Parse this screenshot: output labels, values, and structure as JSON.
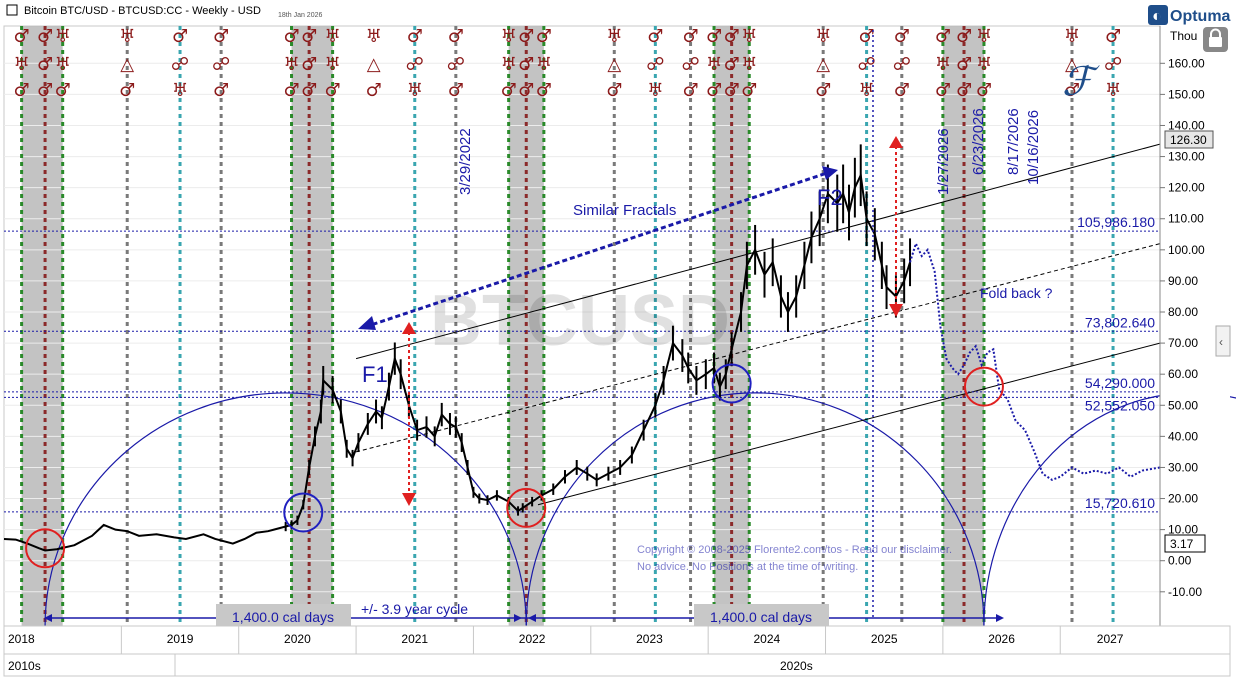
{
  "header": {
    "title": "Bitcoin BTC/USD - BTCUSD:CC - Weekly - USD",
    "date": "18th Jan 2026",
    "brand": "Optuma",
    "units": "Thou",
    "watermark": "BTCUSD"
  },
  "copyright": {
    "line1": "Copyright © 2008-2025 Florente2.com/tos - Read our disclaimer.",
    "line2": "No advice. No Positions at the time of writing."
  },
  "chart_data": {
    "type": "line",
    "yaxis": {
      "ticks": [
        -10,
        0,
        10,
        20,
        30,
        40,
        50,
        60,
        70,
        80,
        90,
        100,
        110,
        120,
        130,
        140,
        150,
        160
      ],
      "tick_labels": [
        "-10.00",
        "0.00",
        "10.00",
        "20.00",
        "30.00",
        "40.00",
        "50.00",
        "60.00",
        "70.00",
        "80.00",
        "90.00",
        "100.00",
        "110.00",
        "120.00",
        "130.00",
        "140.00",
        "150.00",
        "160.00"
      ],
      "ylim": [
        -21,
        172
      ]
    },
    "xaxis": {
      "years": [
        "2018",
        "2019",
        "2020",
        "2021",
        "2022",
        "2023",
        "2024",
        "2025",
        "2026",
        "2027"
      ],
      "decades": [
        "2010s",
        "2020s"
      ],
      "xlim": [
        2018.0,
        2027.85
      ]
    },
    "last_price_label": "126.30",
    "current_value_label": "3.17",
    "price_series": {
      "name": "BTCUSD",
      "points": [
        [
          2018.0,
          7.0
        ],
        [
          2018.1,
          6.8
        ],
        [
          2018.2,
          5.5
        ],
        [
          2018.3,
          4.0
        ],
        [
          2018.35,
          3.3
        ],
        [
          2018.45,
          3.7
        ],
        [
          2018.6,
          5.0
        ],
        [
          2018.75,
          8.0
        ],
        [
          2018.85,
          11.5
        ],
        [
          2018.95,
          10.0
        ],
        [
          2019.05,
          9.5
        ],
        [
          2019.15,
          8.0
        ],
        [
          2019.3,
          8.5
        ],
        [
          2019.45,
          7.5
        ],
        [
          2019.55,
          7.0
        ],
        [
          2019.7,
          8.5
        ],
        [
          2019.8,
          7.0
        ],
        [
          2019.95,
          5.5
        ],
        [
          2020.05,
          7.0
        ],
        [
          2020.15,
          9.0
        ],
        [
          2020.25,
          9.5
        ],
        [
          2020.3,
          10.0
        ],
        [
          2020.4,
          11.0
        ],
        [
          2020.45,
          11.5
        ],
        [
          2020.5,
          13.0
        ],
        [
          2020.55,
          18.0
        ],
        [
          2020.6,
          30.0
        ],
        [
          2020.65,
          40.0
        ],
        [
          2020.7,
          48.0
        ],
        [
          2020.72,
          58.0
        ],
        [
          2020.8,
          55.0
        ],
        [
          2020.87,
          48.0
        ],
        [
          2020.92,
          36.0
        ],
        [
          2020.97,
          33.0
        ],
        [
          2021.02,
          38.0
        ],
        [
          2021.1,
          44.0
        ],
        [
          2021.17,
          48.0
        ],
        [
          2021.22,
          46.0
        ],
        [
          2021.28,
          56.0
        ],
        [
          2021.33,
          65.0
        ],
        [
          2021.38,
          60.0
        ],
        [
          2021.45,
          50.0
        ],
        [
          2021.52,
          42.0
        ],
        [
          2021.6,
          43.0
        ],
        [
          2021.67,
          40.0
        ],
        [
          2021.73,
          47.0
        ],
        [
          2021.8,
          44.0
        ],
        [
          2021.85,
          43.0
        ],
        [
          2021.9,
          38.0
        ],
        [
          2021.95,
          30.0
        ],
        [
          2022.0,
          22.0
        ],
        [
          2022.05,
          20.0
        ],
        [
          2022.12,
          19.5
        ],
        [
          2022.2,
          21.0
        ],
        [
          2022.3,
          19.0
        ],
        [
          2022.38,
          16.0
        ],
        [
          2022.42,
          17.0
        ],
        [
          2022.5,
          19.0
        ],
        [
          2022.58,
          21.0
        ],
        [
          2022.68,
          23.0
        ],
        [
          2022.78,
          27.0
        ],
        [
          2022.88,
          30.0
        ],
        [
          2022.97,
          28.0
        ],
        [
          2023.05,
          26.0
        ],
        [
          2023.15,
          28.0
        ],
        [
          2023.25,
          30.0
        ],
        [
          2023.35,
          34.0
        ],
        [
          2023.45,
          42.0
        ],
        [
          2023.55,
          50.0
        ],
        [
          2023.62,
          58.0
        ],
        [
          2023.7,
          70.0
        ],
        [
          2023.78,
          66.0
        ],
        [
          2023.83,
          62.0
        ],
        [
          2023.9,
          58.0
        ],
        [
          2023.98,
          60.0
        ],
        [
          2024.05,
          62.0
        ],
        [
          2024.1,
          56.0
        ],
        [
          2024.15,
          60.0
        ],
        [
          2024.2,
          68.0
        ],
        [
          2024.28,
          80.0
        ],
        [
          2024.33,
          95.0
        ],
        [
          2024.4,
          100.0
        ],
        [
          2024.48,
          92.0
        ],
        [
          2024.55,
          96.0
        ],
        [
          2024.62,
          85.0
        ],
        [
          2024.68,
          80.0
        ],
        [
          2024.75,
          85.0
        ],
        [
          2024.82,
          95.0
        ],
        [
          2024.88,
          104.0
        ],
        [
          2024.95,
          110.0
        ],
        [
          2025.02,
          118.0
        ],
        [
          2025.1,
          115.0
        ],
        [
          2025.15,
          118.0
        ],
        [
          2025.2,
          112.0
        ],
        [
          2025.25,
          120.0
        ],
        [
          2025.3,
          124.0
        ],
        [
          2025.35,
          110.0
        ],
        [
          2025.42,
          105.0
        ],
        [
          2025.48,
          95.0
        ],
        [
          2025.52,
          88.0
        ],
        [
          2025.6,
          85.0
        ],
        [
          2025.67,
          90.0
        ],
        [
          2025.72,
          96.0
        ]
      ]
    },
    "projection_series": {
      "name": "projection",
      "points": [
        [
          2025.72,
          96.0
        ],
        [
          2025.77,
          102.0
        ],
        [
          2025.82,
          98.0
        ],
        [
          2025.87,
          100.0
        ],
        [
          2025.93,
          93.0
        ],
        [
          2025.98,
          75.0
        ],
        [
          2026.03,
          65.0
        ],
        [
          2026.08,
          62.0
        ],
        [
          2026.13,
          60.0
        ],
        [
          2026.18,
          63.0
        ],
        [
          2026.23,
          67.0
        ],
        [
          2026.28,
          69.0
        ],
        [
          2026.33,
          63.0
        ],
        [
          2026.38,
          67.0
        ],
        [
          2026.43,
          68.0
        ],
        [
          2026.48,
          55.0
        ],
        [
          2026.55,
          52.0
        ],
        [
          2026.62,
          45.0
        ],
        [
          2026.7,
          42.0
        ],
        [
          2026.78,
          35.0
        ],
        [
          2026.85,
          28.0
        ],
        [
          2026.93,
          26.0
        ],
        [
          2027.0,
          27.0
        ],
        [
          2027.1,
          30.0
        ],
        [
          2027.2,
          28.0
        ],
        [
          2027.3,
          29.0
        ],
        [
          2027.4,
          28.0
        ],
        [
          2027.5,
          30.0
        ],
        [
          2027.6,
          27.0
        ],
        [
          2027.7,
          29.0
        ],
        [
          2027.85,
          30.0
        ]
      ]
    },
    "horizontal_levels": [
      {
        "label": "105,986.180",
        "value": 106.0
      },
      {
        "label": "73,802.640",
        "value": 73.8
      },
      {
        "label": "54,290.000",
        "value": 54.3
      },
      {
        "label": "52,552.050",
        "value": 52.55
      },
      {
        "label": "15,720.610",
        "value": 15.7
      }
    ],
    "channel_lines": [
      {
        "style": "solid",
        "x1": 2021.0,
        "y1": 65.0,
        "x2": 2027.85,
        "y2": 134.0
      },
      {
        "style": "dashed",
        "x1": 2021.0,
        "y1": 35.0,
        "x2": 2027.85,
        "y2": 102.0
      },
      {
        "style": "solid",
        "x1": 2022.55,
        "y1": 18.0,
        "x2": 2027.85,
        "y2": 70.0
      }
    ],
    "cycle_arcs": [
      {
        "x1": 2018.35,
        "x2": 2022.45,
        "peak_y": 54.0,
        "base_y": -21.0
      },
      {
        "x1": 2022.45,
        "x2": 2026.35,
        "peak_y": 54.0,
        "base_y": -21.0
      },
      {
        "x1": 2026.35,
        "x2": 2029.9,
        "peak_y": 54.0,
        "base_y": -21.0
      }
    ],
    "circles": [
      {
        "color": "red",
        "x": 2018.35,
        "y": 4.0
      },
      {
        "color": "blue",
        "x": 2020.55,
        "y": 15.5
      },
      {
        "color": "red",
        "x": 2022.45,
        "y": 17.0
      },
      {
        "color": "blue",
        "x": 2024.2,
        "y": 57.0
      },
      {
        "color": "red",
        "x": 2026.35,
        "y": 56.0
      }
    ],
    "shaded_windows": [
      [
        2018.15,
        2018.5
      ],
      [
        2020.45,
        2020.8
      ],
      [
        2022.3,
        2022.6
      ],
      [
        2024.05,
        2024.35
      ],
      [
        2026.0,
        2026.35
      ]
    ],
    "cycle_lines": [
      {
        "x": 2018.15,
        "color": "green"
      },
      {
        "x": 2018.35,
        "color": "maroon"
      },
      {
        "x": 2018.5,
        "color": "green"
      },
      {
        "x": 2019.05,
        "color": "gray"
      },
      {
        "x": 2019.5,
        "color": "teal"
      },
      {
        "x": 2019.85,
        "color": "gray"
      },
      {
        "x": 2020.45,
        "color": "green"
      },
      {
        "x": 2020.6,
        "color": "maroon"
      },
      {
        "x": 2020.8,
        "color": "green"
      },
      {
        "x": 2021.5,
        "color": "teal"
      },
      {
        "x": 2021.85,
        "color": "gray"
      },
      {
        "x": 2022.3,
        "color": "green"
      },
      {
        "x": 2022.45,
        "color": "maroon"
      },
      {
        "x": 2022.6,
        "color": "green"
      },
      {
        "x": 2023.2,
        "color": "gray"
      },
      {
        "x": 2023.55,
        "color": "teal"
      },
      {
        "x": 2023.85,
        "color": "gray"
      },
      {
        "x": 2024.05,
        "color": "green"
      },
      {
        "x": 2024.2,
        "color": "maroon"
      },
      {
        "x": 2024.35,
        "color": "green"
      },
      {
        "x": 2024.98,
        "color": "gray"
      },
      {
        "x": 2025.35,
        "color": "teal"
      },
      {
        "x": 2025.65,
        "color": "gray"
      },
      {
        "x": 2026.0,
        "color": "green"
      },
      {
        "x": 2026.18,
        "color": "maroon"
      },
      {
        "x": 2026.35,
        "color": "green"
      },
      {
        "x": 2027.1,
        "color": "gray"
      },
      {
        "x": 2027.45,
        "color": "teal"
      }
    ],
    "glyph_columns": [
      {
        "x": 2018.15,
        "glyphs": [
          "♂",
          "♅",
          "♂"
        ]
      },
      {
        "x": 2018.35,
        "glyphs": [
          "♂",
          "♂",
          "♂"
        ]
      },
      {
        "x": 2018.5,
        "glyphs": [
          "♅",
          "♅",
          "♂"
        ]
      },
      {
        "x": 2019.05,
        "glyphs": [
          "♅",
          "△",
          "♂"
        ]
      },
      {
        "x": 2019.5,
        "glyphs": [
          "♂",
          "☍",
          "♅"
        ]
      },
      {
        "x": 2019.85,
        "glyphs": [
          "♂",
          "☍",
          "♂"
        ]
      },
      {
        "x": 2020.45,
        "glyphs": [
          "♂",
          "♅",
          "♂"
        ]
      },
      {
        "x": 2020.6,
        "glyphs": [
          "♂",
          "♂",
          "♂"
        ]
      },
      {
        "x": 2020.8,
        "glyphs": [
          "♅",
          "♅",
          "♂"
        ]
      },
      {
        "x": 2021.15,
        "glyphs": [
          "♅",
          "△",
          "♂"
        ]
      },
      {
        "x": 2021.5,
        "glyphs": [
          "♂",
          "☍",
          "♅"
        ]
      },
      {
        "x": 2021.85,
        "glyphs": [
          "♂",
          "☍",
          "♂"
        ]
      },
      {
        "x": 2022.3,
        "glyphs": [
          "♅",
          "♅",
          "♂"
        ]
      },
      {
        "x": 2022.45,
        "glyphs": [
          "♂",
          "♂",
          "♂"
        ]
      },
      {
        "x": 2022.6,
        "glyphs": [
          "♂",
          "♅",
          "♂"
        ]
      },
      {
        "x": 2023.2,
        "glyphs": [
          "♅",
          "△",
          "♂"
        ]
      },
      {
        "x": 2023.55,
        "glyphs": [
          "♂",
          "☍",
          "♅"
        ]
      },
      {
        "x": 2023.85,
        "glyphs": [
          "♂",
          "☍",
          "♂"
        ]
      },
      {
        "x": 2024.05,
        "glyphs": [
          "♂",
          "♅",
          "♂"
        ]
      },
      {
        "x": 2024.2,
        "glyphs": [
          "♂",
          "♂",
          "♂"
        ]
      },
      {
        "x": 2024.35,
        "glyphs": [
          "♅",
          "♅",
          "♂"
        ]
      },
      {
        "x": 2024.98,
        "glyphs": [
          "♅",
          "△",
          "♂"
        ]
      },
      {
        "x": 2025.35,
        "glyphs": [
          "♂",
          "☍",
          "♅"
        ]
      },
      {
        "x": 2025.65,
        "glyphs": [
          "♂",
          "☍",
          "♂"
        ]
      },
      {
        "x": 2026.0,
        "glyphs": [
          "♂",
          "♅",
          "♂"
        ]
      },
      {
        "x": 2026.18,
        "glyphs": [
          "♂",
          "♂",
          "♂"
        ]
      },
      {
        "x": 2026.35,
        "glyphs": [
          "♅",
          "♅",
          "♂"
        ]
      },
      {
        "x": 2027.1,
        "glyphs": [
          "♅",
          "△",
          "♂"
        ]
      },
      {
        "x": 2027.45,
        "glyphs": [
          "♂",
          "☍",
          "♅"
        ]
      }
    ],
    "annotations": {
      "similar_fractals": "Similar Fractals",
      "f1": "F1",
      "f2": "F2",
      "fold_back": "Fold back ?",
      "date_2022": "3/29/2022",
      "date_2026a": "1/27/2026",
      "date_2026b": "6/23/2026",
      "date_2026c": "8/17/2026",
      "date_2026d": "10/16/2026",
      "cycle_label": "+/- 3.9 year cycle",
      "cal_days_1": "1,400.0 cal days",
      "cal_days_2": "1,400.0 cal days"
    },
    "colors": {
      "price": "#000000",
      "projection": "#1a1aa8",
      "annotation": "#1a1aa8",
      "arc": "#1a1aa8",
      "glyph": "#8b1a1a",
      "shade": "#b8b8b8",
      "down_arrow": "#e02020"
    }
  }
}
